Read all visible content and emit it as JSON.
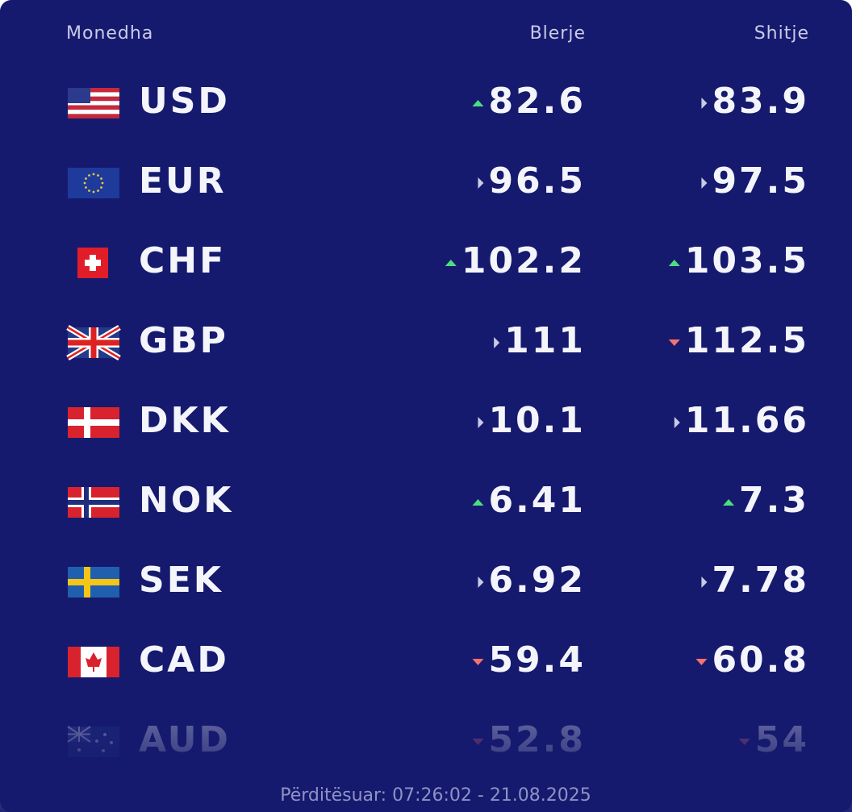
{
  "header": {
    "columns": [
      "Monedha",
      "Blerje",
      "Shitje"
    ]
  },
  "table": {
    "rows": [
      {
        "code": "USD",
        "buy": 82.6,
        "buy_trend": "up",
        "sell": 83.9,
        "sell_trend": "flat"
      },
      {
        "code": "EUR",
        "buy": 96.5,
        "buy_trend": "flat",
        "sell": 97.5,
        "sell_trend": "flat"
      },
      {
        "code": "CHF",
        "buy": 102.2,
        "buy_trend": "up",
        "sell": 103.5,
        "sell_trend": "up"
      },
      {
        "code": "GBP",
        "buy": 111,
        "buy_trend": "flat",
        "sell": 112.5,
        "sell_trend": "down"
      },
      {
        "code": "DKK",
        "buy": 10.1,
        "buy_trend": "flat",
        "sell": 11.66,
        "sell_trend": "flat"
      },
      {
        "code": "NOK",
        "buy": 6.41,
        "buy_trend": "up",
        "sell": 7.3,
        "sell_trend": "up"
      },
      {
        "code": "SEK",
        "buy": 6.92,
        "buy_trend": "flat",
        "sell": 7.78,
        "sell_trend": "flat"
      },
      {
        "code": "CAD",
        "buy": 59.4,
        "buy_trend": "down",
        "sell": 60.8,
        "sell_trend": "down"
      },
      {
        "code": "AUD",
        "buy": 52.8,
        "buy_trend": "down",
        "sell": 54,
        "sell_trend": "down"
      }
    ]
  },
  "footer": "Përditësuar: 07:26:02 - 21.08.2025"
}
